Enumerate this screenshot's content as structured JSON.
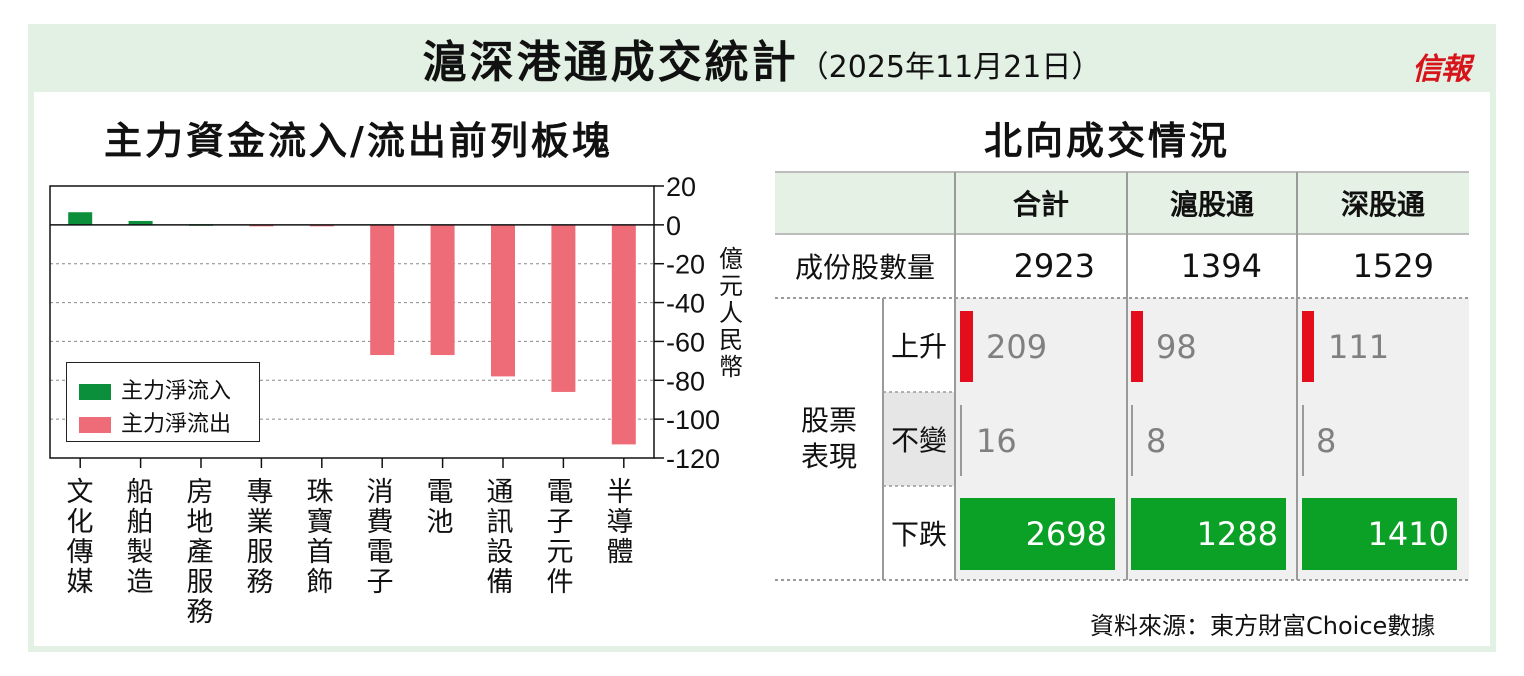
{
  "header": {
    "title": "滬深港通成交統計",
    "date": "（2025年11月21日）",
    "brand": "信報"
  },
  "colors": {
    "inflow": "#0c8f3b",
    "outflow": "#ee6c77",
    "up_bar": "#e30d1b",
    "down_box": "#0aa126",
    "frame_bg": "#e3f0e4",
    "table_header_bg": "#e5f1e5"
  },
  "left_panel": {
    "title": "主力資金流入/流出前列板塊",
    "unit_label": "億元人民幣",
    "legend": [
      "主力淨流入",
      "主力淨流出"
    ]
  },
  "chart_data": {
    "type": "bar",
    "title": "主力資金流入/流出前列板塊",
    "ylabel": "億元人民幣",
    "ylim": [
      -120,
      20
    ],
    "yticks": [
      20,
      0,
      -20,
      -40,
      -60,
      -80,
      -100,
      -120
    ],
    "grid": true,
    "legend_position": "bottom-left",
    "categories": [
      "文化傳媒",
      "船舶製造",
      "房地產服務",
      "專業服務",
      "珠寶首飾",
      "消費電子",
      "電池",
      "通訊設備",
      "電子元件",
      "半導體"
    ],
    "series": [
      {
        "name": "主力淨流入",
        "values": [
          6.5,
          2.0,
          0.3,
          null,
          null,
          null,
          null,
          null,
          null,
          null
        ]
      },
      {
        "name": "主力淨流出",
        "values": [
          null,
          null,
          null,
          -0.7,
          -0.7,
          -67,
          -67,
          -78,
          -86,
          -113
        ]
      }
    ]
  },
  "right_panel": {
    "title": "北向成交情況",
    "columns": [
      "合計",
      "滬股通",
      "深股通"
    ],
    "constituents": {
      "label": "成份股數量",
      "values": [
        "2923",
        "1394",
        "1529"
      ]
    },
    "performance_label": "股票表現",
    "rows": [
      {
        "label": "上升",
        "values": [
          "209",
          "98",
          "111"
        ]
      },
      {
        "label": "不變",
        "values": [
          "16",
          "8",
          "8"
        ]
      },
      {
        "label": "下跌",
        "values": [
          "2698",
          "1288",
          "1410"
        ]
      }
    ],
    "source": "資料來源：東方財富Choice數據"
  }
}
